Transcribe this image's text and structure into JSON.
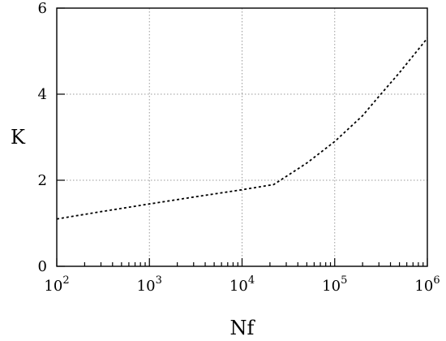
{
  "chart_data": {
    "type": "line",
    "title": "",
    "xlabel": "Nf",
    "ylabel": "K",
    "x_scale": "log",
    "xlim": [
      100,
      1000000
    ],
    "ylim": [
      0,
      6
    ],
    "grid": true,
    "x_ticks": [
      {
        "value": 100,
        "base": "10",
        "exp": "2"
      },
      {
        "value": 1000,
        "base": "10",
        "exp": "3"
      },
      {
        "value": 10000,
        "base": "10",
        "exp": "4"
      },
      {
        "value": 100000,
        "base": "10",
        "exp": "5"
      },
      {
        "value": 1000000,
        "base": "10",
        "exp": "6"
      }
    ],
    "y_ticks": [
      {
        "value": 0,
        "label": "0"
      },
      {
        "value": 2,
        "label": "2"
      },
      {
        "value": 4,
        "label": "4"
      },
      {
        "value": 6,
        "label": "6"
      }
    ],
    "series": [
      {
        "style": "dotted",
        "color": "#000000",
        "x": [
          100,
          300,
          1000,
          3000,
          10000,
          22000,
          50000,
          100000,
          200000,
          300000,
          500000,
          1000000
        ],
        "y": [
          1.1,
          1.27,
          1.45,
          1.61,
          1.78,
          1.9,
          2.4,
          2.9,
          3.5,
          3.95,
          4.5,
          5.3
        ]
      }
    ]
  }
}
